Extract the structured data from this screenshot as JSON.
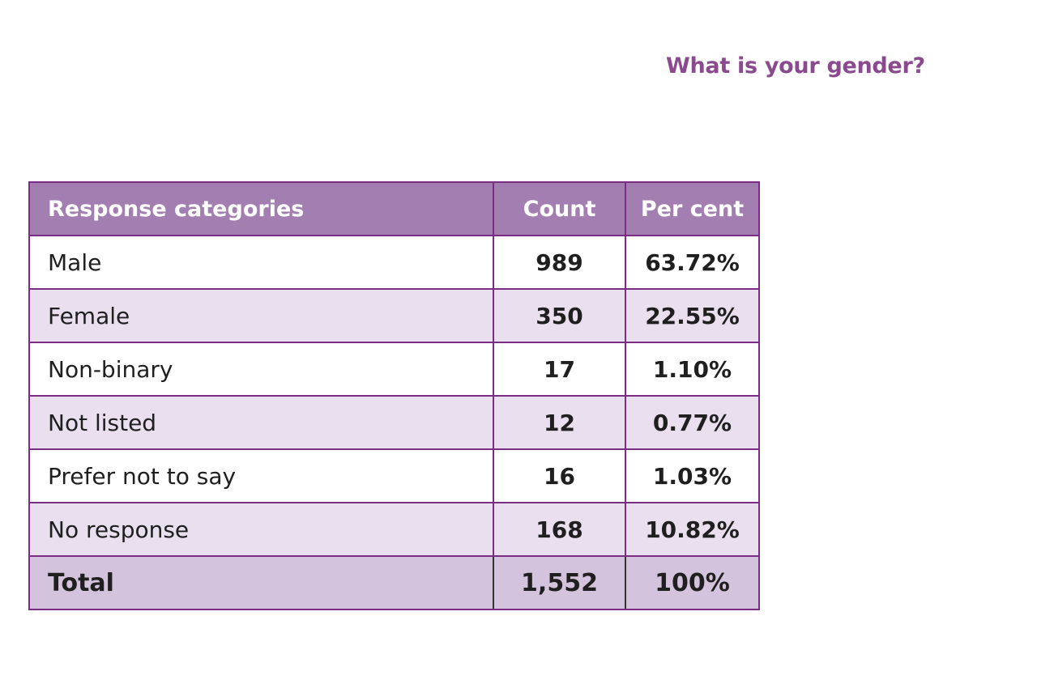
{
  "title": "What is your gender?",
  "colors": {
    "title": "#8a4a8e",
    "header_bg": "#a27fb0",
    "row_white": "#ffffff",
    "row_light": "#e9dfee",
    "total_bg": "#d4c3dd",
    "border": "#7b2d86"
  },
  "chart_data": {
    "type": "table",
    "title": "What is your gender?",
    "columns": [
      "Response categories",
      "Count",
      "Per cent"
    ],
    "rows": [
      {
        "category": "Male",
        "count": "989",
        "percent": "63.72%"
      },
      {
        "category": "Female",
        "count": "350",
        "percent": "22.55%"
      },
      {
        "category": "Non-binary",
        "count": "17",
        "percent": "1.10%"
      },
      {
        "category": "Not listed",
        "count": "12",
        "percent": "0.77%"
      },
      {
        "category": "Prefer not to say",
        "count": "16",
        "percent": "1.03%"
      },
      {
        "category": "No response",
        "count": "168",
        "percent": "10.82%"
      }
    ],
    "total": {
      "category": "Total",
      "count": "1,552",
      "percent": "100%"
    }
  }
}
